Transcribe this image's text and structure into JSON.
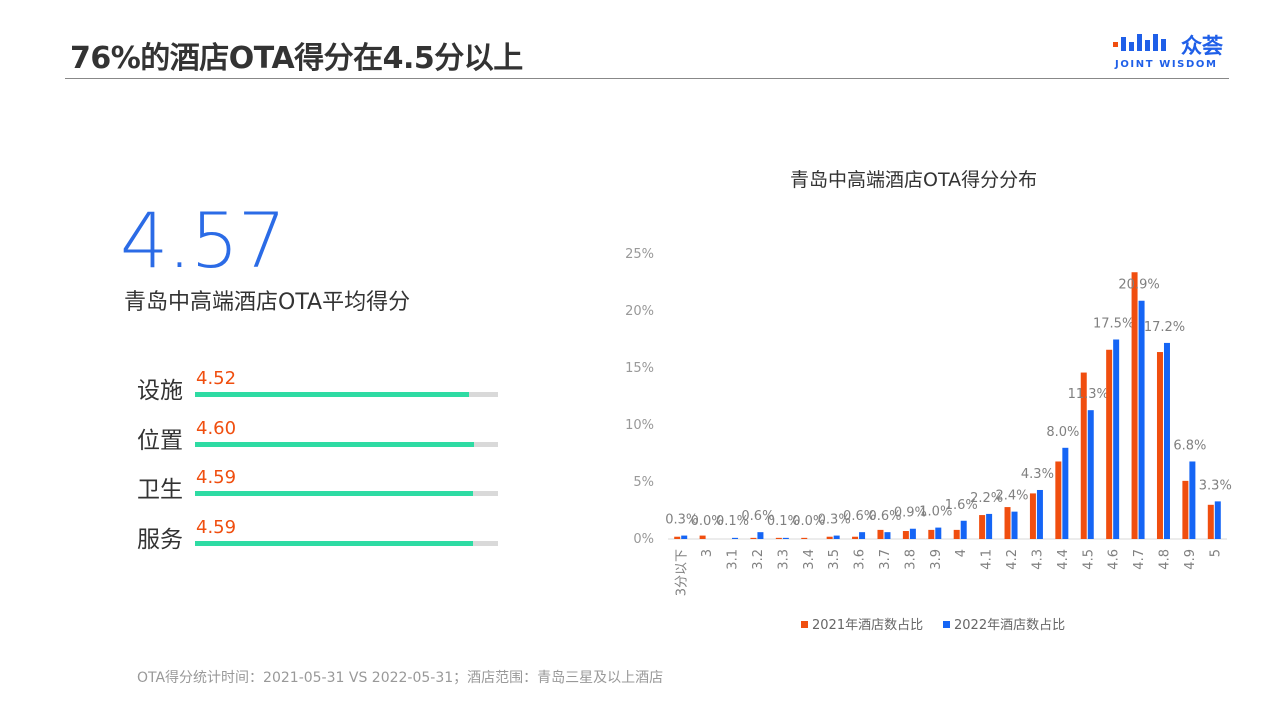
{
  "header": {
    "title": "76%的酒店OTA得分在4.5分以上",
    "logo_cn": "众荟",
    "logo_en": "JOINT WISDOM"
  },
  "summary": {
    "score": "4.57",
    "label": "青岛中高端酒店OTA平均得分"
  },
  "metrics": [
    {
      "name": "设施",
      "value": "4.52",
      "fraction": 0.904
    },
    {
      "name": "位置",
      "value": "4.60",
      "fraction": 0.92
    },
    {
      "name": "卫生",
      "value": "4.59",
      "fraction": 0.918
    },
    {
      "name": "服务",
      "value": "4.59",
      "fraction": 0.918
    }
  ],
  "chart_data": {
    "type": "bar",
    "title": "青岛中高端酒店OTA得分分布",
    "categories": [
      "3分以下",
      "3",
      "3.1",
      "3.2",
      "3.3",
      "3.4",
      "3.5",
      "3.6",
      "3.7",
      "3.8",
      "3.9",
      "4",
      "4.1",
      "4.2",
      "4.3",
      "4.4",
      "4.5",
      "4.6",
      "4.7",
      "4.8",
      "4.9",
      "5"
    ],
    "series": [
      {
        "name": "2021年酒店数占比",
        "color": "#f04e0f",
        "values": [
          0.2,
          0.3,
          0.0,
          0.1,
          0.1,
          0.1,
          0.2,
          0.2,
          0.8,
          0.7,
          0.8,
          0.8,
          2.1,
          2.8,
          4.0,
          6.8,
          14.6,
          16.6,
          23.4,
          16.4,
          5.1,
          3.0
        ]
      },
      {
        "name": "2022年酒店数占比",
        "color": "#1565f5",
        "values": [
          0.3,
          0.0,
          0.1,
          0.6,
          0.1,
          0.0,
          0.3,
          0.6,
          0.6,
          0.9,
          1.0,
          1.6,
          2.2,
          2.4,
          4.3,
          8.0,
          11.3,
          17.5,
          20.9,
          17.2,
          6.8,
          3.3
        ]
      }
    ],
    "data_labels": [
      "0.3%",
      "0.0%",
      "0.1%",
      "0.6%",
      "0.1%",
      "0.0%",
      "0.3%",
      "0.6%",
      "0.6%",
      "0.9%",
      "1.0%",
      "1.6%",
      "2.2%",
      "2.4%",
      "4.3%",
      "8.0%",
      "11.3%",
      "17.5%",
      "20.9%",
      "17.2%",
      "6.8%",
      "3.3%"
    ],
    "yticks": [
      "0%",
      "5%",
      "10%",
      "15%",
      "20%",
      "25%"
    ],
    "ylim": [
      0,
      25
    ],
    "legend_position": "bottom"
  },
  "footnote": "OTA得分统计时间：2021-05-31  VS  2022-05-31；酒店范围：青岛三星及以上酒店"
}
